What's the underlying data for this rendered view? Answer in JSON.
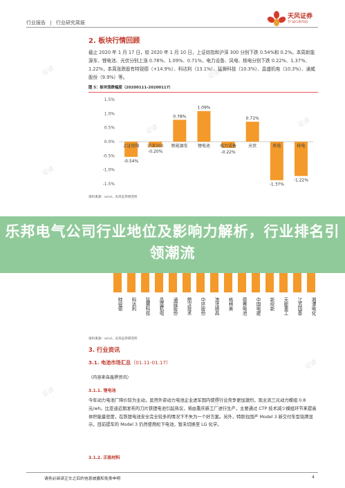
{
  "header": {
    "breadcrumb": [
      "行业报告",
      "|",
      "行业研究周报"
    ],
    "logo_cn": "天风证券",
    "logo_en": "TF SECURITIES"
  },
  "section2": {
    "title": "2. 板块行情回顾",
    "paragraph": "截止 2020 年 1 月 17 日，较 2020 年 1 月 10 日，上证综指和沪深 300 分别下跌 0.54%和 0.2%。本周新能源车、锂电池、光伏分别上涨 0.78%、1.09%、0.71%，电力设备、风电、核电分别下跌 0.22%、1.37%、1.22%，本周涨跌股有特锐德（+14.9%）、科达利（13.1%）、猛狮科技（10.3%）、晶盛机电（10.3%）、通威股份（9.9%）等。",
    "figure_caption": "图 5：板块涨跌幅度（20200111-20200117）",
    "source": "资料来源：wind，天风证券研究所"
  },
  "chart_data": {
    "type": "bar",
    "categories": [
      "上证综指",
      "沪深300",
      "新能源车",
      "锂电池",
      "电力设备",
      "光伏",
      "风电",
      "核电"
    ],
    "values": [
      -0.54,
      -0.2,
      0.78,
      1.09,
      -0.22,
      0.71,
      -1.37,
      -1.22
    ],
    "value_labels": [
      "-0.54%",
      "-0.20%",
      "0.78%",
      "1.09%",
      "-0.22%",
      "0.71%",
      "-1.37%",
      "-1.22%"
    ],
    "yticks": [
      "1.5%",
      "1.0%",
      "0.5%",
      "0.0%",
      "-0.5%",
      "-1.0%",
      "-1.5%"
    ],
    "ylim": [
      -1.5,
      1.5
    ],
    "bar_color": "#f39a2b",
    "title": "",
    "xlabel": "",
    "ylabel": ""
  },
  "banner": {
    "title": "乐邦电气公司行业地位及影响力解析，行业排名引领潮流"
  },
  "stock_labels": {
    "items": [
      "特锐德",
      "科达利",
      "猛狮科技",
      "晶盛机电",
      "通威股份",
      "鼎汉技术",
      "中环股份",
      "澳洋顺昌",
      "格林美",
      "德赛电池",
      "中国电建",
      "新纶新",
      "天能重工",
      "江苏国泰",
      "湘潭电化"
    ],
    "bar_color": "#f39a2b",
    "source": "资料来源：wind，天风证券研究所"
  },
  "section3": {
    "title": "3. 行业资讯",
    "sub31_title": "3.1. 电池市场汇总",
    "sub31_range": "（01.11-01.17）",
    "editor": "（内容来自鑫椤资讯）",
    "sub311": "3.1.1. 锂电池",
    "body": "今年动力电池厂降价较为主动，显然外资动力电池企业进军国内使得行业竞争更加激烈，现主流三元动力模组 0.8 元/wh。比亚迪近期发布的刀片铁锂电池引起热议，将由重庆新工厂进行生产，主要通过 CTP 技术减少模组环节来提高体积能量密度，在铁锂电池安全完全较多的情况下不失为一个好方案。另外，特斯拉国产 Model 3 新交付车型铭牌显示，目前提车的 Model 3 仍然使用松下电池，暂未切换至 LG 化学。",
    "sub312": "3.1.2. 正极材料"
  },
  "footer": {
    "text": "请务必阅读正文之后的信息披露和免责申明",
    "page": "4"
  },
  "watermarks": [
    "证读",
    "证读",
    "证读",
    "证读",
    "证读",
    "证读",
    "证读",
    "证读"
  ]
}
